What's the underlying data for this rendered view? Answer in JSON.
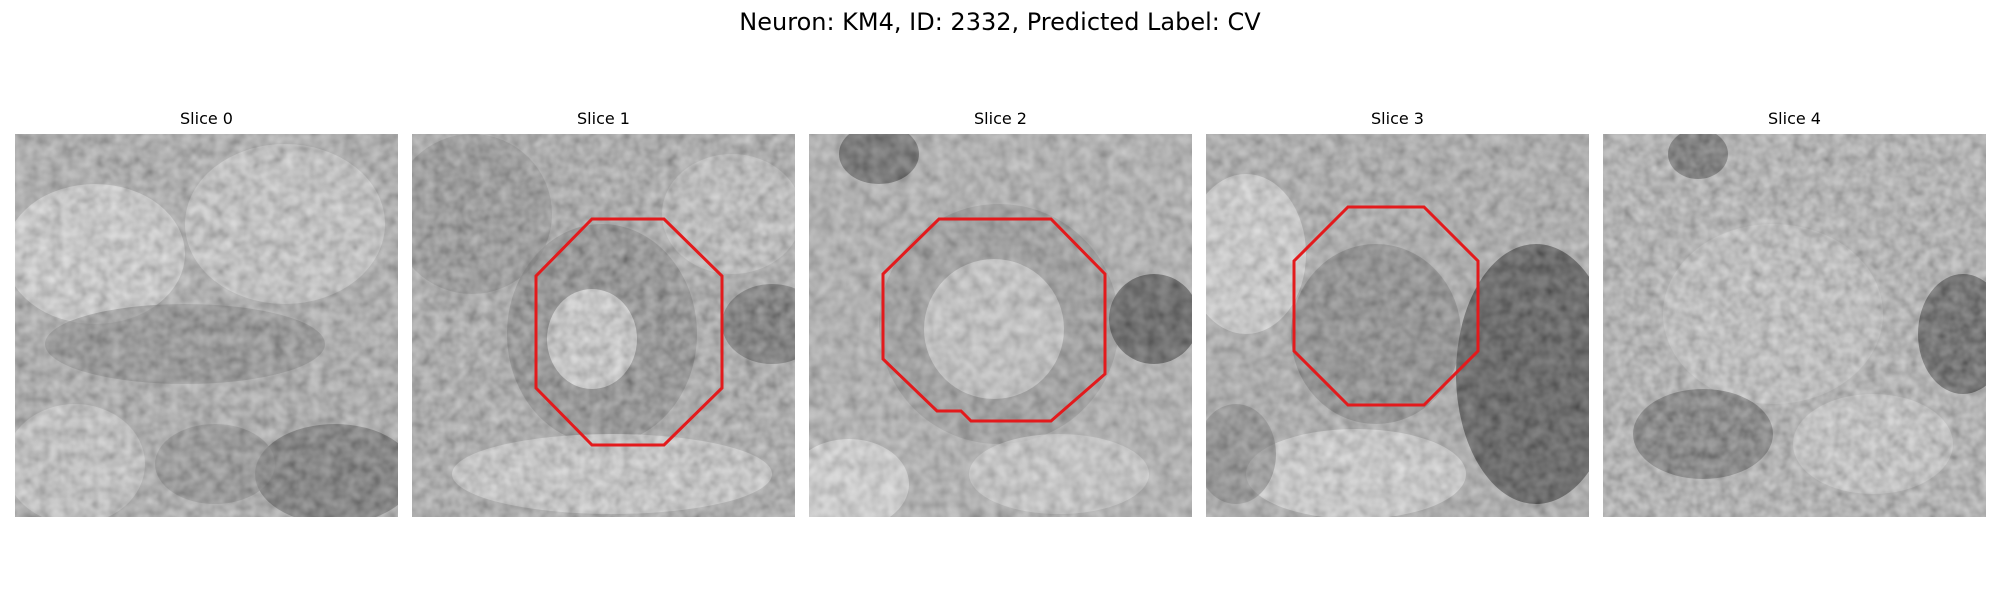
{
  "figure": {
    "title": "Neuron: KM4, ID: 2332, Predicted Label: CV"
  },
  "panels": [
    {
      "title": "Slice 0",
      "has_outline": false
    },
    {
      "title": "Slice 1",
      "has_outline": true
    },
    {
      "title": "Slice 2",
      "has_outline": true
    },
    {
      "title": "Slice 3",
      "has_outline": true
    },
    {
      "title": "Slice 4",
      "has_outline": false
    }
  ],
  "colors": {
    "outline": "#e31a1c",
    "background": "#ffffff"
  }
}
